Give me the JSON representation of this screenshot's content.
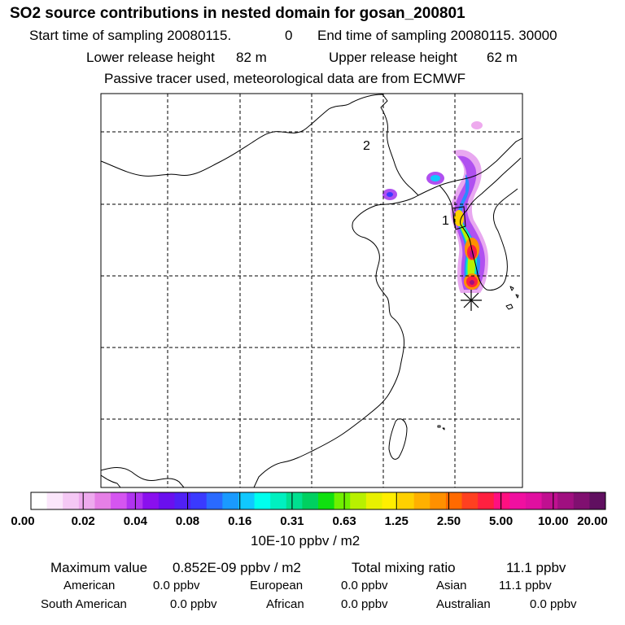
{
  "header": {
    "title": "SO2 source contributions in nested domain for gosan_200801",
    "start_label": "Start time of sampling 20080115.",
    "start_hour": "0",
    "end_label": "End time of sampling 20080115. 30000",
    "lower_label": "Lower release height",
    "lower_value": "82 m",
    "upper_label": "Upper release height",
    "upper_value": "62 m",
    "tracer_note": "Passive tracer used, meteorological data are from ECMWF"
  },
  "map": {
    "region_labels": [
      "1",
      "2"
    ],
    "receptor_marker": "asterisk-marker"
  },
  "colorbar": {
    "colors": [
      "#ffffff",
      "#fbe6fb",
      "#f5c8f5",
      "#eeaaee",
      "#e67fe6",
      "#d555f0",
      "#b033f0",
      "#8a10ee",
      "#6a10ee",
      "#5020f5",
      "#3a3aff",
      "#2a6aff",
      "#1a9aff",
      "#10c8ff",
      "#00ffee",
      "#00f0c0",
      "#00e090",
      "#00d060",
      "#10e010",
      "#70f000",
      "#b8f000",
      "#e8f000",
      "#ffee00",
      "#ffd000",
      "#ffb000",
      "#ff9000",
      "#ff6a00",
      "#ff4020",
      "#ff2040",
      "#ff1080",
      "#f010a0",
      "#e010a0",
      "#c01090",
      "#a01080",
      "#801070",
      "#601060"
    ],
    "tick_labels": [
      "0.00",
      "0.02",
      "0.04",
      "0.08",
      "0.16",
      "0.31",
      "0.63",
      "1.25",
      "2.50",
      "5.00",
      "10.00",
      "20.00"
    ],
    "units": "10E-10 ppbv / m2"
  },
  "summary": {
    "max_label": "Maximum value",
    "max_value": "0.852E-09 ppbv / m2",
    "total_label": "Total mixing ratio",
    "total_value": "11.1 ppbv",
    "regions": [
      {
        "name": "American",
        "value": "0.0 ppbv"
      },
      {
        "name": "European",
        "value": "0.0 ppbv"
      },
      {
        "name": "Asian",
        "value": "11.1 ppbv"
      },
      {
        "name": "South American",
        "value": "0.0 ppbv"
      },
      {
        "name": "African",
        "value": "0.0 ppbv"
      },
      {
        "name": "Australian",
        "value": "0.0 ppbv"
      }
    ]
  }
}
